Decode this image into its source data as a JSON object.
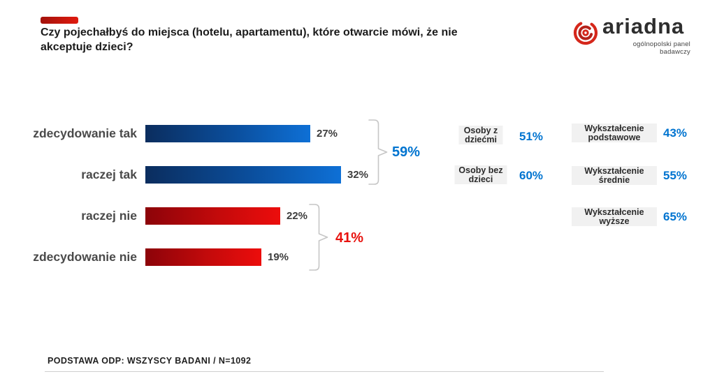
{
  "header": {
    "title": "Czy pojechałbyś do miejsca (hotelu, apartamentu), które otwarcie mówi, że nie akceptuje dzieci?",
    "logo": {
      "name": "ariadna",
      "tagline": "ogólnopolski panel badawczy",
      "brand_red": "#d5271b",
      "brand_dark": "#2e2e2e"
    }
  },
  "chart_data": {
    "type": "bar",
    "orientation": "horizontal",
    "title": "Czy pojechałbyś do miejsca (hotelu, apartamentu), które otwarcie mówi, że nie akceptuje dzieci?",
    "categories": [
      "zdecydowanie tak",
      "raczej tak",
      "raczej nie",
      "zdecydowanie nie"
    ],
    "values": [
      27,
      32,
      22,
      19
    ],
    "value_labels": [
      "27%",
      "32%",
      "22%",
      "19%"
    ],
    "unit": "%",
    "xlim": [
      0,
      35
    ],
    "grid": false,
    "bar_color_positive": "#0e70d6",
    "bar_color_negative": "#ec0d0c",
    "groups": [
      {
        "label": "59%",
        "sum": 59,
        "members": [
          "zdecydowanie tak",
          "raczej tak"
        ],
        "color": "#0074d0"
      },
      {
        "label": "41%",
        "sum": 41,
        "members": [
          "raczej nie",
          "zdecydowanie nie"
        ],
        "color": "#e8120e"
      }
    ],
    "breakdowns": [
      {
        "label": "Osoby z dziećmi",
        "value": "51%"
      },
      {
        "label": "Osoby bez dzieci",
        "value": "60%"
      },
      {
        "label": "Wykształcenie podstawowe",
        "value": "43%"
      },
      {
        "label": "Wykształcenie średnie",
        "value": "55%"
      },
      {
        "label": "Wykształcenie wyższe",
        "value": "65%"
      }
    ]
  },
  "footer": {
    "base_note": "PODSTAWA ODP: WSZYSCY BADANI / N=1092"
  },
  "colors": {
    "accent_red": "#e01a0e",
    "accent_blue": "#0074d0",
    "label_gray": "#4a4a4a",
    "box_bg": "#f1f1f1",
    "bracket_gray": "#c6c6c6"
  }
}
